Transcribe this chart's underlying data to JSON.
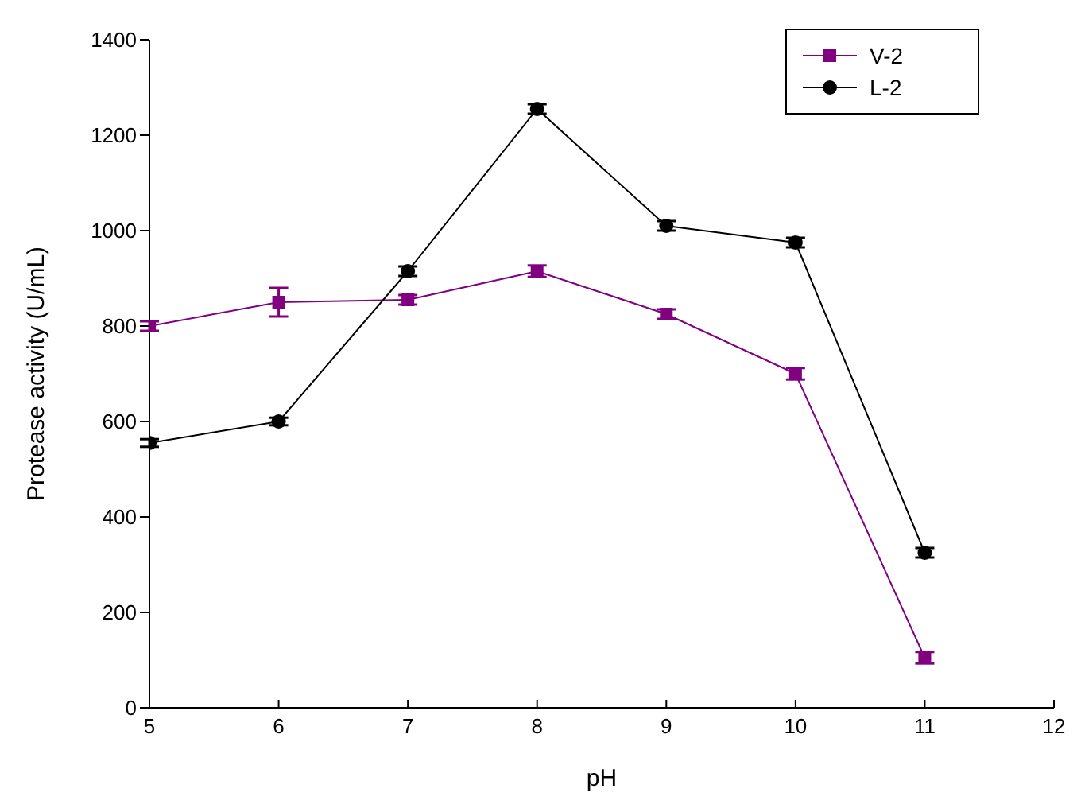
{
  "chart_data": {
    "type": "line",
    "xlabel": "pH",
    "ylabel": "Protease activity (U/mL)",
    "x": [
      5,
      6,
      7,
      8,
      9,
      10,
      11
    ],
    "series": [
      {
        "name": "V-2",
        "color": "#800080",
        "marker": "square",
        "values": [
          800,
          850,
          855,
          915,
          825,
          700,
          105
        ],
        "errors": [
          10,
          30,
          10,
          12,
          10,
          12,
          12
        ]
      },
      {
        "name": "L-2",
        "color": "#000000",
        "marker": "circle",
        "values": [
          555,
          600,
          915,
          1255,
          1010,
          975,
          325
        ],
        "errors": [
          8,
          8,
          10,
          10,
          10,
          10,
          10
        ]
      }
    ],
    "xlim": [
      5,
      12
    ],
    "xticks": [
      5,
      6,
      7,
      8,
      9,
      10,
      11,
      12
    ],
    "ylim": [
      0,
      1400
    ],
    "yticks": [
      0,
      200,
      400,
      600,
      800,
      1000,
      1200,
      1400
    ],
    "grid": false,
    "legend": "top right"
  }
}
